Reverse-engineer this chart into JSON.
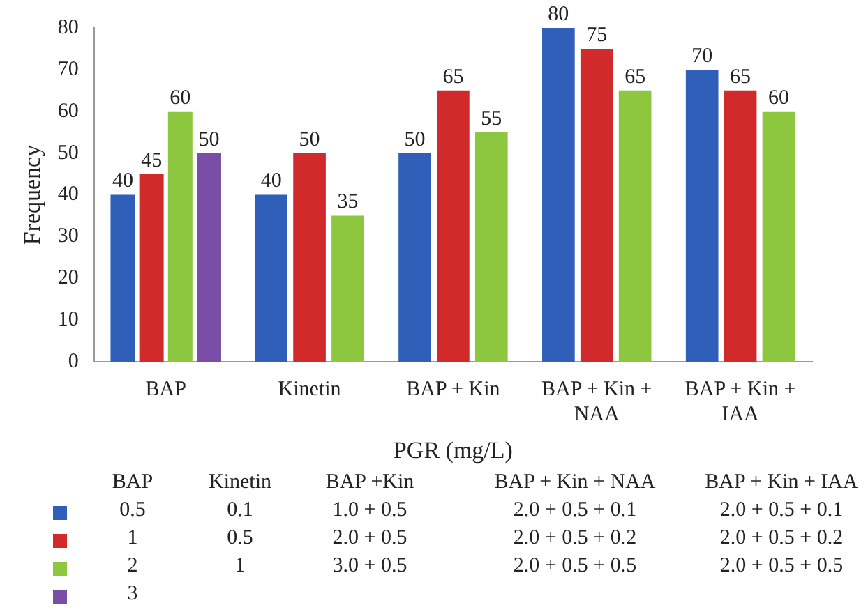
{
  "chart_data": {
    "type": "bar",
    "xlabel": "PGR (mg/L)",
    "ylabel": "Frequency",
    "categories": [
      "BAP",
      "Kinetin",
      "BAP + Kin",
      "BAP + Kin + NAA",
      "BAP + Kin + IAA"
    ],
    "series": [
      {
        "color": "#2f5fb8",
        "values": [
          40,
          40,
          50,
          80,
          70
        ]
      },
      {
        "color": "#d12a2a",
        "values": [
          45,
          50,
          65,
          75,
          65
        ]
      },
      {
        "color": "#8dc63f",
        "values": [
          60,
          35,
          55,
          65,
          60
        ]
      },
      {
        "color": "#7a4ea6",
        "values": [
          50,
          null,
          null,
          null,
          null
        ]
      }
    ],
    "ylim": [
      0,
      80
    ],
    "yticks": [
      0,
      10,
      20,
      30,
      40,
      50,
      60,
      70,
      80
    ],
    "grid": false,
    "legend": false,
    "data_labels": true,
    "annotations": [
      "BAP",
      "Kinetin",
      "BAP +Kin",
      "BAP + Kin + NAA",
      "BAP + Kin + IAA",
      "0.5",
      "0.1",
      "1.0 + 0.5",
      "2.0 + 0.5 + 0.1",
      "2.0 + 0.5 + 0.1",
      "1",
      "0.5",
      "2.0 + 0.5",
      "2.0 + 0.5 + 0.2",
      "2.0 + 0.5 + 0.2",
      "2",
      "1",
      "3.0 + 0.5",
      "2.0 + 0.5 + 0.5",
      "2.0 + 0.5 + 0.5",
      "3"
    ]
  }
}
